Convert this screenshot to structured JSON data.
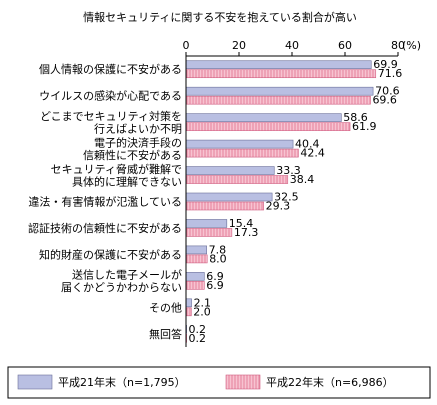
{
  "chart_data": {
    "type": "bar",
    "orientation": "horizontal",
    "title": "情報セキュリティに関する不安を抱えている割合が高い",
    "xlim": [
      0,
      80
    ],
    "ticks": [
      "0",
      "20",
      "40",
      "60",
      "80"
    ],
    "unit_label": "(%)",
    "categories": [
      [
        "個人情報の保護に不安がある"
      ],
      [
        "ウイルスの感染が心配である"
      ],
      [
        "どこまでセキュリティ対策を",
        "行えばよいか不明"
      ],
      [
        "電子的決済手段の",
        "信頼性に不安がある"
      ],
      [
        "セキュリティ脅威が難解で",
        "具体的に理解できない"
      ],
      [
        "違法・有害情報が氾濫している"
      ],
      [
        "認証技術の信頼性に不安がある"
      ],
      [
        "知的財産の保護に不安がある"
      ],
      [
        "送信した電子メールが",
        "届くかどうかわからない"
      ],
      [
        "その他"
      ],
      [
        "無回答"
      ]
    ],
    "series": [
      {
        "name": "平成21年末（n=1,795）",
        "color": "#b9bfe2",
        "values": [
          69.9,
          70.6,
          58.6,
          40.4,
          33.3,
          32.5,
          15.4,
          7.8,
          6.9,
          2.1,
          0.2
        ],
        "labels": [
          "69.9",
          "70.6",
          "58.6",
          "40.4",
          "33.3",
          "32.5",
          "15.4",
          "7.8",
          "6.9",
          "2.1",
          "0.2"
        ]
      },
      {
        "name": "平成22年末（n=6,986）",
        "color": "#f4b6c6",
        "hatched": true,
        "values": [
          71.6,
          69.6,
          61.9,
          42.4,
          38.4,
          29.3,
          17.3,
          8.0,
          6.9,
          2.0,
          0.2
        ],
        "labels": [
          "71.6",
          "69.6",
          "61.9",
          "42.4",
          "38.4",
          "29.3",
          "17.3",
          "8.0",
          "6.9",
          "2.0",
          "0.2"
        ]
      }
    ],
    "legend_position": "bottom"
  }
}
